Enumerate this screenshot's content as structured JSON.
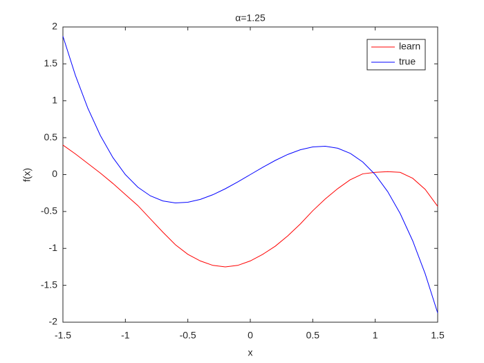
{
  "chart_data": {
    "type": "line",
    "title": "α=1.25",
    "x_label": "x",
    "y_label": "f(x)",
    "x": [
      -1.5,
      -1.4,
      -1.3,
      -1.2,
      -1.1,
      -1.0,
      -0.9,
      -0.8,
      -0.7,
      -0.6,
      -0.5,
      -0.4,
      -0.3,
      -0.2,
      -0.1,
      0,
      0.1,
      0.2,
      0.3,
      0.4,
      0.5,
      0.6,
      0.7,
      0.8,
      0.9,
      1.0,
      1.1,
      1.2,
      1.3,
      1.4,
      1.5
    ],
    "series": [
      {
        "name": "learn",
        "color": "#ff0000",
        "values": [
          0.4,
          0.28,
          0.15,
          0.02,
          -0.12,
          -0.27,
          -0.42,
          -0.6,
          -0.78,
          -0.95,
          -1.08,
          -1.17,
          -1.23,
          -1.25,
          -1.23,
          -1.17,
          -1.08,
          -0.97,
          -0.83,
          -0.67,
          -0.49,
          -0.33,
          -0.19,
          -0.07,
          0.01,
          0.03,
          0.04,
          0.03,
          -0.05,
          -0.2,
          -0.43
        ]
      },
      {
        "name": "true",
        "color": "#0000ff",
        "values": [
          1.875,
          1.344,
          0.897,
          0.528,
          0.231,
          0,
          -0.171,
          -0.288,
          -0.357,
          -0.384,
          -0.375,
          -0.336,
          -0.273,
          -0.192,
          -0.099,
          0,
          0.099,
          0.192,
          0.273,
          0.336,
          0.375,
          0.384,
          0.357,
          0.288,
          0.171,
          0,
          -0.231,
          -0.528,
          -0.897,
          -1.344,
          -1.875
        ]
      }
    ],
    "xlim": [
      -1.5,
      1.5
    ],
    "ylim": [
      -2,
      2
    ],
    "xticks": [
      -1.5,
      -1,
      -0.5,
      0,
      0.5,
      1,
      1.5
    ],
    "yticks": [
      -2,
      -1.5,
      -1,
      -0.5,
      0,
      0.5,
      1,
      1.5,
      2
    ],
    "legend": "top-right"
  }
}
